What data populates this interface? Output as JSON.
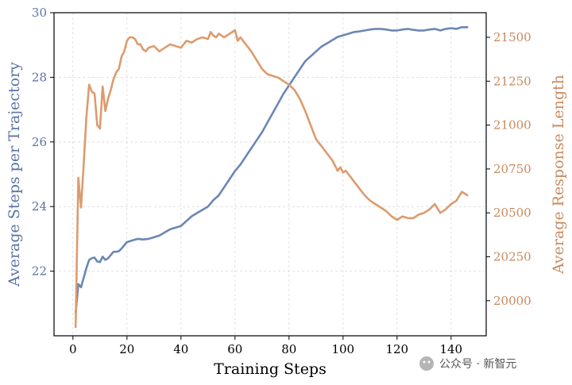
{
  "chart_data": {
    "type": "line",
    "xlabel": "Training Steps",
    "ylabel_left": "Average Steps per Trajectory",
    "ylabel_right": "Average Response Length",
    "xlim": [
      -7,
      153
    ],
    "ylim_left": [
      20,
      30
    ],
    "ylim_right": [
      19800,
      21640
    ],
    "x_ticks": [
      0,
      20,
      40,
      60,
      80,
      100,
      120,
      140
    ],
    "y_left_ticks": [
      22,
      24,
      26,
      28,
      30
    ],
    "y_right_ticks": [
      20000,
      20250,
      20500,
      20750,
      21000,
      21250,
      21500
    ],
    "grid": true,
    "colors": {
      "steps": "#6b87b4",
      "length": "#dd9b6e",
      "left_axis_text": "#5a73a6",
      "right_axis_text": "#c98a5e"
    },
    "series": [
      {
        "name": "Average Steps per Trajectory",
        "axis": "left",
        "x": [
          1,
          2,
          3,
          4,
          5,
          6,
          7,
          8,
          9,
          10,
          11,
          12,
          13,
          14,
          15,
          16,
          17,
          18,
          19,
          20,
          22,
          24,
          26,
          28,
          30,
          32,
          34,
          36,
          38,
          40,
          42,
          44,
          46,
          48,
          50,
          52,
          54,
          56,
          58,
          60,
          62,
          64,
          66,
          68,
          70,
          72,
          74,
          76,
          78,
          80,
          82,
          84,
          86,
          88,
          90,
          92,
          94,
          96,
          98,
          100,
          102,
          104,
          106,
          108,
          110,
          112,
          114,
          116,
          118,
          120,
          122,
          124,
          126,
          128,
          130,
          132,
          134,
          136,
          138,
          140,
          142,
          144,
          146
        ],
        "values": [
          20.7,
          21.6,
          21.5,
          21.8,
          22.1,
          22.35,
          22.4,
          22.42,
          22.3,
          22.28,
          22.45,
          22.35,
          22.4,
          22.5,
          22.6,
          22.6,
          22.62,
          22.7,
          22.8,
          22.9,
          22.95,
          23.0,
          22.98,
          23.0,
          23.05,
          23.1,
          23.2,
          23.3,
          23.35,
          23.4,
          23.55,
          23.7,
          23.8,
          23.9,
          24.0,
          24.2,
          24.35,
          24.6,
          24.85,
          25.1,
          25.3,
          25.55,
          25.8,
          26.05,
          26.3,
          26.6,
          26.9,
          27.2,
          27.5,
          27.75,
          28.0,
          28.25,
          28.5,
          28.65,
          28.8,
          28.95,
          29.05,
          29.15,
          29.25,
          29.3,
          29.35,
          29.4,
          29.42,
          29.45,
          29.48,
          29.5,
          29.5,
          29.48,
          29.45,
          29.45,
          29.48,
          29.5,
          29.47,
          29.45,
          29.45,
          29.48,
          29.5,
          29.45,
          29.5,
          29.52,
          29.5,
          29.55,
          29.55
        ]
      },
      {
        "name": "Average Response Length",
        "axis": "right",
        "x": [
          1,
          2,
          3,
          4,
          5,
          6,
          7,
          8,
          9,
          10,
          11,
          12,
          13,
          14,
          15,
          16,
          17,
          18,
          19,
          20,
          21,
          22,
          23,
          24,
          25,
          26,
          27,
          28,
          30,
          32,
          34,
          36,
          38,
          40,
          42,
          44,
          46,
          48,
          50,
          51,
          52,
          53,
          54,
          56,
          58,
          60,
          61,
          62,
          64,
          66,
          68,
          70,
          72,
          74,
          76,
          78,
          80,
          82,
          84,
          86,
          88,
          90,
          92,
          94,
          96,
          98,
          99,
          100,
          101,
          102,
          104,
          106,
          108,
          110,
          112,
          114,
          116,
          118,
          120,
          122,
          124,
          126,
          128,
          130,
          132,
          134,
          136,
          138,
          140,
          142,
          144,
          146
        ],
        "values": [
          19850,
          20700,
          20530,
          20780,
          21050,
          21230,
          21190,
          21180,
          21000,
          20980,
          21220,
          21080,
          21150,
          21200,
          21260,
          21300,
          21320,
          21390,
          21420,
          21480,
          21500,
          21500,
          21490,
          21460,
          21460,
          21430,
          21420,
          21440,
          21450,
          21420,
          21440,
          21460,
          21450,
          21440,
          21480,
          21470,
          21490,
          21500,
          21490,
          21530,
          21510,
          21500,
          21520,
          21500,
          21520,
          21540,
          21480,
          21500,
          21460,
          21420,
          21370,
          21320,
          21290,
          21280,
          21270,
          21250,
          21230,
          21200,
          21150,
          21080,
          21000,
          20920,
          20880,
          20840,
          20800,
          20740,
          20760,
          20730,
          20740,
          20720,
          20680,
          20640,
          20600,
          20570,
          20550,
          20530,
          20510,
          20480,
          20460,
          20480,
          20470,
          20470,
          20490,
          20500,
          20520,
          20550,
          20500,
          20520,
          20550,
          20570,
          20620,
          20600
        ]
      }
    ]
  },
  "watermark": {
    "text": "公众号 · 新智元"
  }
}
